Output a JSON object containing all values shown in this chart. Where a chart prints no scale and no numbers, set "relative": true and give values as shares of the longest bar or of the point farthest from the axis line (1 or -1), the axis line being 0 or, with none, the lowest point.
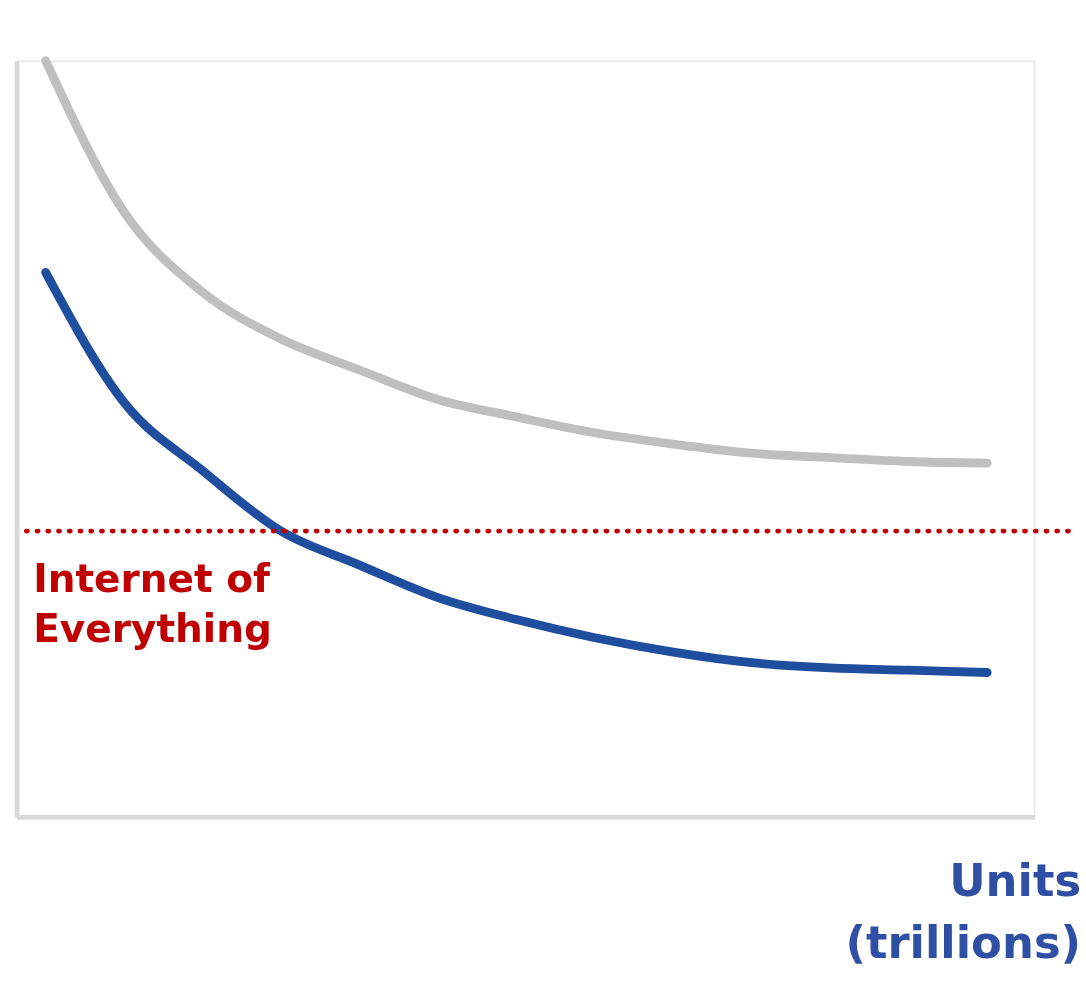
{
  "chart_data": {
    "type": "line",
    "relative": true,
    "xlabel": "Units (trillions)",
    "categories": [
      null,
      null,
      null,
      null,
      null,
      null,
      null,
      null,
      null,
      null,
      null,
      null,
      null
    ],
    "series": [
      {
        "color": "#bfbfbf",
        "values": [
          1.0,
          0.8,
          0.694,
          0.632,
          0.591,
          0.552,
          0.529,
          0.508,
          0.493,
          0.481,
          0.475,
          0.47,
          0.468
        ]
      },
      {
        "color": "#1f4e9f",
        "values": [
          0.72,
          0.548,
          0.458,
          0.378,
          0.333,
          0.29,
          0.261,
          0.237,
          0.218,
          0.204,
          0.197,
          0.194,
          0.191
        ]
      }
    ],
    "ref_lines": [
      {
        "axis": "y",
        "value": 0.378,
        "label": "Internet of Everything",
        "color": "#c00000",
        "line_style": "dotted"
      }
    ],
    "grid": false,
    "legend": false,
    "line_style": "solid",
    "tick_labels": false
  }
}
